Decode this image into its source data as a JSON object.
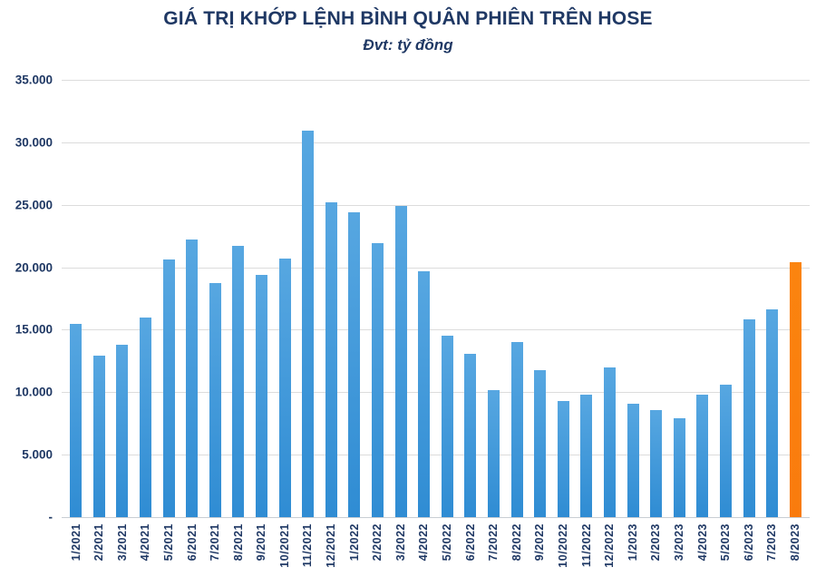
{
  "title": "GIÁ TRỊ KHỚP LỆNH BÌNH QUÂN PHIÊN TRÊN HOSE",
  "subtitle": "Đvt: tỷ đồng",
  "colors": {
    "title_text": "#1F3864",
    "axis_text": "#1F3864",
    "bar_top": "#57A7E1",
    "bar_bottom": "#2F8CD3",
    "highlight_bar": "#F97B0D",
    "gridline": "#DCDCDC"
  },
  "y_axis": {
    "ticks": [
      "35.000",
      "30.000",
      "25.000",
      "20.000",
      "15.000",
      "10.000",
      "5.000",
      "-"
    ],
    "min": 0,
    "max": 35000,
    "step": 5000
  },
  "chart_data": {
    "type": "bar",
    "title": "GIÁ TRỊ KHỚP LỆNH BÌNH QUÂN PHIÊN TRÊN HOSE",
    "subtitle": "Đvt: tỷ đồng",
    "xlabel": "",
    "ylabel": "tỷ đồng",
    "ylim": [
      0,
      35000
    ],
    "grid": true,
    "legend": false,
    "categories": [
      "1/2021",
      "2/2021",
      "3/2021",
      "4/2021",
      "5/2021",
      "6/2021",
      "7/2021",
      "8/2021",
      "9/2021",
      "10/2021",
      "11/2021",
      "12/2021",
      "1/2022",
      "2/2022",
      "3/2022",
      "4/2022",
      "5/2022",
      "6/2022",
      "7/2022",
      "8/2022",
      "9/2022",
      "10/2022",
      "11/2022",
      "12/2022",
      "1/2023",
      "2/2023",
      "3/2023",
      "4/2023",
      "5/2023",
      "6/2023",
      "7/2023",
      "8/2023"
    ],
    "values": [
      15500,
      12900,
      13800,
      16000,
      20600,
      22200,
      18700,
      21700,
      19400,
      20700,
      30900,
      25200,
      24400,
      21900,
      24900,
      19700,
      14500,
      13100,
      10200,
      14000,
      11800,
      9300,
      9800,
      12000,
      9100,
      8600,
      7900,
      9800,
      10600,
      15800,
      16600,
      20400
    ],
    "highlight_index": 31,
    "bar_color": "#3F96D8",
    "highlight_color": "#F97B0D"
  }
}
